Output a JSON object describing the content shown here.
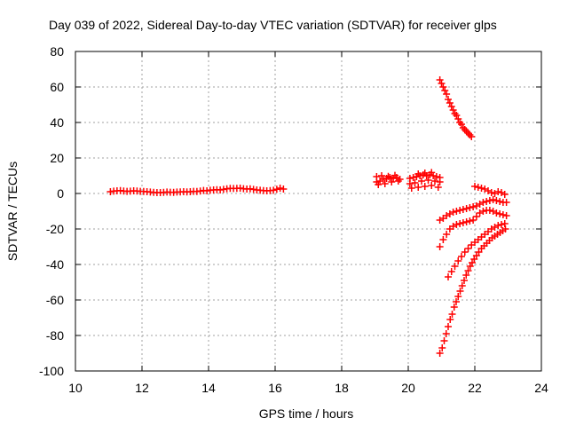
{
  "chart_data": {
    "type": "scatter",
    "title": "Day 039 of 2022, Sidereal Day-to-day VTEC variation (SDTVAR) for receiver glps",
    "xlabel": "GPS time / hours",
    "ylabel": "SDTVAR / TECUs",
    "xlim": [
      10,
      24
    ],
    "ylim": [
      -100,
      80
    ],
    "xticks": [
      "10",
      "12",
      "14",
      "16",
      "18",
      "20",
      "22",
      "24"
    ],
    "yticks": [
      "-100",
      "-80",
      "-60",
      "-40",
      "-20",
      "0",
      "20",
      "40",
      "60",
      "80"
    ],
    "grid": true,
    "marker": "plus",
    "color": "#ff0000",
    "series": [
      {
        "values": [
          [
            11.05,
            1.0
          ],
          [
            11.15,
            1.3
          ],
          [
            11.25,
            1.5
          ],
          [
            11.35,
            1.6
          ],
          [
            11.45,
            1.4
          ],
          [
            11.55,
            1.2
          ],
          [
            11.65,
            1.3
          ],
          [
            11.75,
            1.5
          ],
          [
            11.85,
            1.4
          ],
          [
            11.95,
            1.2
          ],
          [
            12.05,
            1.1
          ],
          [
            12.15,
            1.0
          ],
          [
            12.25,
            0.8
          ],
          [
            12.35,
            0.6
          ],
          [
            12.45,
            0.5
          ],
          [
            12.55,
            0.5
          ],
          [
            12.65,
            0.6
          ],
          [
            12.75,
            0.8
          ],
          [
            12.85,
            0.7
          ],
          [
            12.95,
            0.6
          ],
          [
            13.05,
            0.8
          ],
          [
            13.15,
            0.9
          ],
          [
            13.25,
            1.0
          ],
          [
            13.35,
            0.9
          ],
          [
            13.45,
            1.0
          ],
          [
            13.55,
            1.2
          ],
          [
            13.65,
            1.1
          ],
          [
            13.75,
            1.4
          ],
          [
            13.85,
            1.7
          ],
          [
            13.95,
            1.5
          ],
          [
            14.05,
            1.8
          ],
          [
            14.15,
            2.0
          ],
          [
            14.25,
            2.1
          ],
          [
            14.35,
            2.0
          ],
          [
            14.45,
            2.3
          ],
          [
            14.55,
            2.6
          ],
          [
            14.65,
            2.9
          ],
          [
            14.75,
            2.8
          ],
          [
            14.85,
            2.9
          ],
          [
            14.95,
            3.0
          ],
          [
            15.05,
            2.7
          ],
          [
            15.15,
            2.5
          ],
          [
            15.25,
            2.6
          ],
          [
            15.35,
            2.3
          ],
          [
            15.45,
            2.0
          ],
          [
            15.55,
            1.8
          ],
          [
            15.65,
            1.6
          ],
          [
            15.75,
            1.5
          ],
          [
            15.85,
            1.6
          ],
          [
            15.95,
            1.8
          ],
          [
            16.05,
            2.4
          ],
          [
            16.15,
            3.0
          ],
          [
            16.25,
            2.5
          ]
        ]
      },
      {
        "values": [
          [
            19.05,
            6.5
          ],
          [
            19.15,
            7.0
          ],
          [
            19.25,
            8.0
          ],
          [
            19.35,
            8.5
          ],
          [
            19.45,
            9.0
          ],
          [
            19.55,
            8.5
          ],
          [
            19.65,
            9.0
          ],
          [
            19.75,
            8.0
          ],
          [
            19.05,
            9.5
          ],
          [
            19.2,
            10.0
          ],
          [
            19.4,
            9.6
          ],
          [
            19.6,
            10.2
          ],
          [
            19.1,
            5.0
          ],
          [
            19.3,
            5.5
          ],
          [
            19.5,
            6.5
          ],
          [
            19.7,
            7.0
          ]
        ]
      },
      {
        "values": [
          [
            20.05,
            8.5
          ],
          [
            20.15,
            9.0
          ],
          [
            20.25,
            9.5
          ],
          [
            20.35,
            10.0
          ],
          [
            20.45,
            10.5
          ],
          [
            20.55,
            10.0
          ],
          [
            20.65,
            10.5
          ],
          [
            20.75,
            10.0
          ],
          [
            20.85,
            9.5
          ],
          [
            20.95,
            9.0
          ],
          [
            20.05,
            5.5
          ],
          [
            20.2,
            6.0
          ],
          [
            20.4,
            7.0
          ],
          [
            20.6,
            7.5
          ],
          [
            20.8,
            7.0
          ],
          [
            20.95,
            6.5
          ],
          [
            20.1,
            3.0
          ],
          [
            20.3,
            3.5
          ],
          [
            20.5,
            4.0
          ],
          [
            20.7,
            4.5
          ],
          [
            20.9,
            3.5
          ],
          [
            20.5,
            11.5
          ],
          [
            20.7,
            11.8
          ],
          [
            20.3,
            11.0
          ]
        ]
      },
      {
        "values": [
          [
            20.95,
            64
          ],
          [
            21.0,
            62
          ],
          [
            21.05,
            60
          ],
          [
            21.1,
            58
          ],
          [
            21.15,
            56
          ],
          [
            21.2,
            53
          ],
          [
            21.25,
            51
          ],
          [
            21.3,
            49
          ],
          [
            21.35,
            47
          ],
          [
            21.4,
            45
          ],
          [
            21.45,
            44
          ],
          [
            21.5,
            42
          ],
          [
            21.55,
            40
          ],
          [
            21.6,
            39
          ],
          [
            21.65,
            37
          ],
          [
            21.7,
            36
          ],
          [
            21.75,
            35
          ],
          [
            21.8,
            34
          ],
          [
            21.85,
            33
          ],
          [
            21.9,
            32
          ]
        ]
      },
      {
        "values": [
          [
            22.0,
            4.0
          ],
          [
            22.1,
            3.5
          ],
          [
            22.2,
            3.0
          ],
          [
            22.3,
            2.5
          ],
          [
            22.4,
            1.5
          ],
          [
            22.5,
            0.5
          ],
          [
            22.6,
            0.0
          ],
          [
            22.7,
            1.0
          ],
          [
            22.8,
            0.5
          ],
          [
            22.9,
            -0.5
          ]
        ]
      },
      {
        "values": [
          [
            20.95,
            -15
          ],
          [
            21.05,
            -14
          ],
          [
            21.15,
            -12.5
          ],
          [
            21.25,
            -11.5
          ],
          [
            21.35,
            -10.5
          ],
          [
            21.45,
            -10
          ],
          [
            21.55,
            -9.5
          ],
          [
            21.65,
            -9
          ],
          [
            21.75,
            -8.5
          ],
          [
            21.85,
            -8
          ],
          [
            21.95,
            -7.5
          ],
          [
            22.05,
            -7
          ],
          [
            22.15,
            -6
          ],
          [
            22.25,
            -5
          ],
          [
            22.35,
            -4.5
          ],
          [
            22.45,
            -4
          ],
          [
            22.55,
            -3.5
          ],
          [
            22.65,
            -4
          ],
          [
            22.75,
            -4.5
          ],
          [
            22.85,
            -5
          ],
          [
            22.95,
            -5
          ]
        ]
      },
      {
        "values": [
          [
            20.95,
            -30
          ],
          [
            21.05,
            -26
          ],
          [
            21.15,
            -23
          ],
          [
            21.25,
            -20
          ],
          [
            21.35,
            -18.5
          ],
          [
            21.45,
            -17.5
          ],
          [
            21.55,
            -17
          ],
          [
            21.65,
            -16.5
          ],
          [
            21.75,
            -16
          ],
          [
            21.85,
            -15.5
          ],
          [
            21.95,
            -15
          ],
          [
            22.05,
            -13
          ],
          [
            22.15,
            -11
          ],
          [
            22.25,
            -10
          ],
          [
            22.35,
            -9.5
          ],
          [
            22.45,
            -9.5
          ],
          [
            22.55,
            -10
          ],
          [
            22.65,
            -11
          ],
          [
            22.75,
            -11.5
          ],
          [
            22.85,
            -12
          ],
          [
            22.95,
            -12.5
          ]
        ]
      },
      {
        "values": [
          [
            21.2,
            -47
          ],
          [
            21.3,
            -44
          ],
          [
            21.4,
            -41
          ],
          [
            21.5,
            -38
          ],
          [
            21.6,
            -35.5
          ],
          [
            21.7,
            -33
          ],
          [
            21.8,
            -31
          ],
          [
            21.9,
            -29
          ],
          [
            22.0,
            -27.5
          ],
          [
            22.1,
            -26
          ],
          [
            22.2,
            -24.5
          ],
          [
            22.3,
            -23
          ],
          [
            22.4,
            -21.5
          ],
          [
            22.5,
            -20
          ],
          [
            22.6,
            -19
          ],
          [
            22.7,
            -18
          ],
          [
            22.8,
            -17.5
          ],
          [
            22.9,
            -17
          ]
        ]
      },
      {
        "values": [
          [
            20.95,
            -90
          ],
          [
            21.02,
            -87
          ],
          [
            21.08,
            -83
          ],
          [
            21.14,
            -79
          ],
          [
            21.2,
            -75
          ],
          [
            21.26,
            -71
          ],
          [
            21.32,
            -68
          ],
          [
            21.38,
            -64
          ],
          [
            21.44,
            -61
          ],
          [
            21.5,
            -58
          ],
          [
            21.56,
            -55
          ],
          [
            21.62,
            -52
          ],
          [
            21.68,
            -49
          ],
          [
            21.74,
            -46
          ],
          [
            21.8,
            -43.5
          ],
          [
            21.86,
            -41
          ],
          [
            21.92,
            -39
          ],
          [
            21.98,
            -37
          ],
          [
            22.05,
            -35
          ],
          [
            22.12,
            -33
          ],
          [
            22.2,
            -31
          ],
          [
            22.28,
            -29.5
          ],
          [
            22.36,
            -28
          ],
          [
            22.44,
            -26.5
          ],
          [
            22.52,
            -25
          ],
          [
            22.6,
            -24
          ],
          [
            22.68,
            -23
          ],
          [
            22.76,
            -22
          ],
          [
            22.84,
            -21
          ],
          [
            22.92,
            -20
          ]
        ]
      }
    ]
  }
}
